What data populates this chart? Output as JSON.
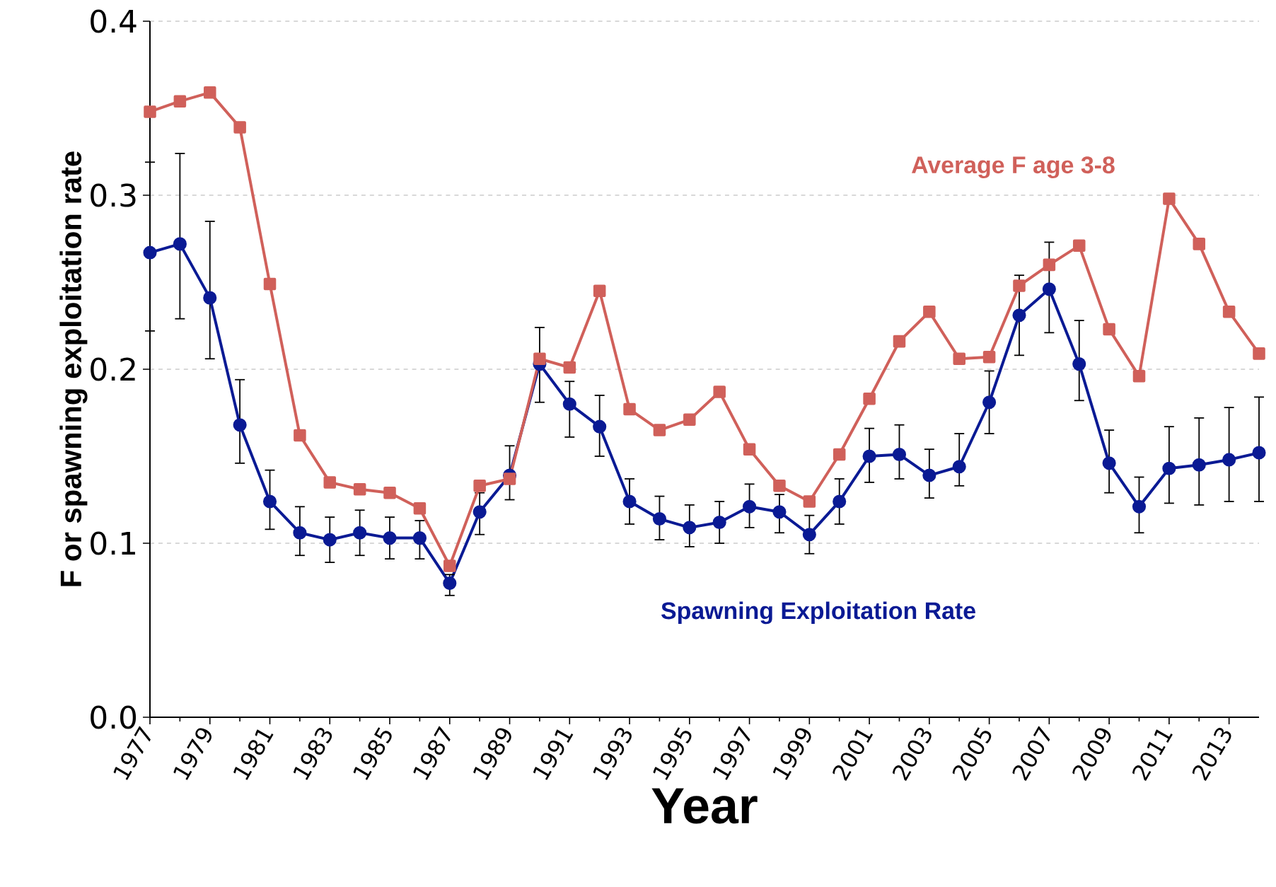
{
  "chart_data": {
    "type": "line",
    "xlabel": "Year",
    "ylabel": "F or spawning exploitation rate",
    "x": [
      1977,
      1978,
      1979,
      1980,
      1981,
      1982,
      1983,
      1984,
      1985,
      1986,
      1987,
      1988,
      1989,
      1990,
      1991,
      1992,
      1993,
      1994,
      1995,
      1996,
      1997,
      1998,
      1999,
      2000,
      2001,
      2002,
      2003,
      2004,
      2005,
      2006,
      2007,
      2008,
      2009,
      2010,
      2011,
      2012,
      2013,
      2014
    ],
    "series": [
      {
        "name": "Average F age 3-8",
        "color": "#d0605a",
        "marker": "square",
        "values": [
          0.348,
          0.354,
          0.359,
          0.339,
          0.249,
          0.162,
          0.135,
          0.131,
          0.129,
          0.12,
          0.087,
          0.133,
          0.137,
          0.206,
          0.201,
          0.245,
          0.177,
          0.165,
          0.171,
          0.187,
          0.154,
          0.133,
          0.124,
          0.151,
          0.183,
          0.216,
          0.233,
          0.206,
          0.207,
          0.248,
          0.26,
          0.271,
          0.223,
          0.196,
          0.298,
          0.272,
          0.233,
          0.209
        ]
      },
      {
        "name": "Spawning Exploitation Rate",
        "color": "#0a1a94",
        "marker": "circle",
        "values": [
          0.267,
          0.272,
          0.241,
          0.168,
          0.124,
          0.106,
          0.102,
          0.106,
          0.103,
          0.103,
          0.077,
          0.118,
          0.139,
          0.203,
          0.18,
          0.167,
          0.124,
          0.114,
          0.109,
          0.112,
          0.121,
          0.118,
          0.105,
          0.124,
          0.15,
          0.151,
          0.139,
          0.144,
          0.181,
          0.231,
          0.246,
          0.203,
          0.146,
          0.121,
          0.143,
          0.145,
          0.148,
          0.152
        ],
        "errors": [
          [
            0.222,
            0.319
          ],
          [
            0.229,
            0.324
          ],
          [
            0.206,
            0.285
          ],
          [
            0.146,
            0.194
          ],
          [
            0.108,
            0.142
          ],
          [
            0.093,
            0.121
          ],
          [
            0.089,
            0.115
          ],
          [
            0.093,
            0.119
          ],
          [
            0.091,
            0.115
          ],
          [
            0.091,
            0.113
          ],
          [
            0.07,
            0.082
          ],
          [
            0.105,
            0.129
          ],
          [
            0.125,
            0.156
          ],
          [
            0.181,
            0.224
          ],
          [
            0.161,
            0.193
          ],
          [
            0.15,
            0.185
          ],
          [
            0.111,
            0.137
          ],
          [
            0.102,
            0.127
          ],
          [
            0.098,
            0.122
          ],
          [
            0.1,
            0.124
          ],
          [
            0.109,
            0.134
          ],
          [
            0.106,
            0.128
          ],
          [
            0.094,
            0.116
          ],
          [
            0.111,
            0.137
          ],
          [
            0.135,
            0.166
          ],
          [
            0.137,
            0.168
          ],
          [
            0.126,
            0.154
          ],
          [
            0.133,
            0.163
          ],
          [
            0.163,
            0.199
          ],
          [
            0.208,
            0.254
          ],
          [
            0.221,
            0.273
          ],
          [
            0.182,
            0.228
          ],
          [
            0.129,
            0.165
          ],
          [
            0.106,
            0.138
          ],
          [
            0.123,
            0.167
          ],
          [
            0.122,
            0.172
          ],
          [
            0.124,
            0.178
          ],
          [
            0.124,
            0.184
          ]
        ]
      }
    ],
    "xlim": [
      1977,
      2014
    ],
    "xticks": [
      1977,
      {
        "value": 1978,
        "label": null
      },
      1979,
      {
        "value": 1980,
        "label": null
      },
      1981,
      {
        "value": 1982,
        "label": null
      },
      1983,
      {
        "value": 1984,
        "label": null
      },
      1985,
      {
        "value": 1986,
        "label": null
      },
      1987,
      {
        "value": 1988,
        "label": null
      },
      1989,
      {
        "value": 1990,
        "label": null
      },
      1991,
      {
        "value": 1992,
        "label": null
      },
      1993,
      {
        "value": 1994,
        "label": null
      },
      1995,
      {
        "value": 1996,
        "label": null
      },
      1997,
      {
        "value": 1998,
        "label": null
      },
      1999,
      {
        "value": 2000,
        "label": null
      },
      2001,
      {
        "value": 2002,
        "label": null
      },
      2003,
      {
        "value": 2004,
        "label": null
      },
      2005,
      {
        "value": 2006,
        "label": null
      },
      2007,
      {
        "value": 2008,
        "label": null
      },
      2009,
      {
        "value": 2010,
        "label": null
      },
      2011,
      {
        "value": 2012,
        "label": null
      },
      2013
    ],
    "ylim": [
      0,
      0.4
    ],
    "yticks": [
      {
        "value": 0,
        "label": "0.0"
      },
      0.1,
      0.2,
      0.3,
      0.4
    ],
    "grid": "y",
    "legend": false,
    "line_style": "solid"
  }
}
